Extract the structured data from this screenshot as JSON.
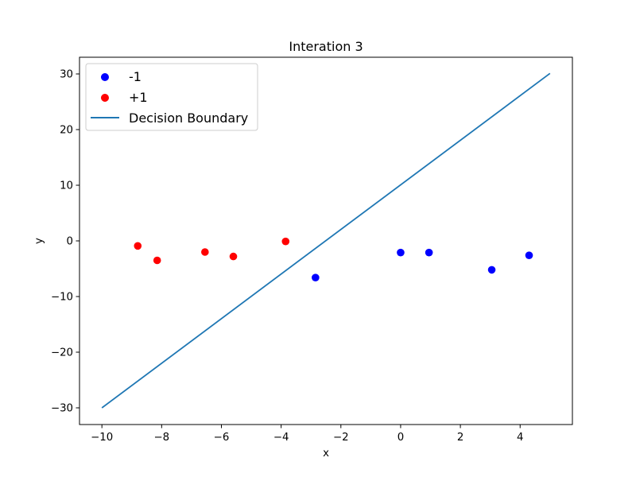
{
  "chart_data": {
    "type": "scatter",
    "title": "Interation 3",
    "xlabel": "x",
    "ylabel": "y",
    "xlim": [
      -10.75,
      5.75
    ],
    "ylim": [
      -33,
      33
    ],
    "xticks": [
      -10,
      -8,
      -6,
      -4,
      -2,
      0,
      2,
      4
    ],
    "yticks": [
      -30,
      -20,
      -10,
      0,
      10,
      20,
      30
    ],
    "xtick_labels": [
      "−10",
      "−8",
      "−6",
      "−4",
      "−2",
      "0",
      "2",
      "4"
    ],
    "ytick_labels": [
      "−30",
      "−20",
      "−10",
      "0",
      "10",
      "20",
      "30"
    ],
    "grid": false,
    "legend_position": "top-left",
    "series": [
      {
        "name": "-1",
        "kind": "scatter",
        "color": "#0000ff",
        "points": [
          [
            -2.85,
            -6.6
          ],
          [
            0.0,
            -2.1
          ],
          [
            0.95,
            -2.1
          ],
          [
            3.05,
            -5.2
          ],
          [
            4.3,
            -2.6
          ]
        ]
      },
      {
        "name": "+1",
        "kind": "scatter",
        "color": "#ff0000",
        "points": [
          [
            -8.8,
            -0.9
          ],
          [
            -8.15,
            -3.5
          ],
          [
            -6.55,
            -2.0
          ],
          [
            -5.6,
            -2.8
          ],
          [
            -3.85,
            -0.1
          ]
        ]
      },
      {
        "name": "Decision Boundary",
        "kind": "line",
        "color": "#1f77b4",
        "points": [
          [
            -10,
            -30
          ],
          [
            5,
            30.1
          ]
        ]
      }
    ]
  }
}
